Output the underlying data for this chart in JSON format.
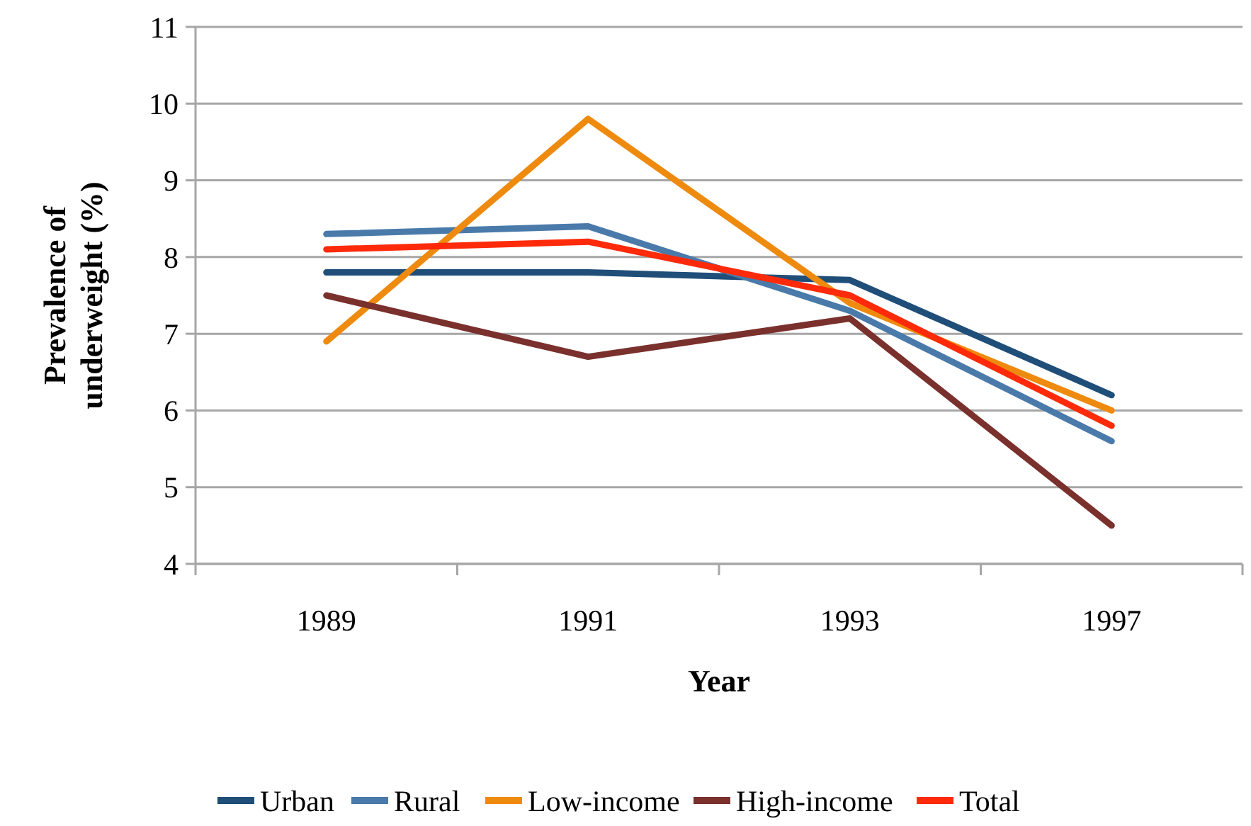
{
  "chart_data": {
    "type": "line",
    "xlabel": "Year",
    "ylabel": "Prevalence of underweight (%)",
    "categories": [
      "1989",
      "1991",
      "1993",
      "1997"
    ],
    "ylim": [
      4,
      11
    ],
    "yticks": [
      4,
      5,
      6,
      7,
      8,
      9,
      10,
      11
    ],
    "grid": "y",
    "legend": "bottom",
    "marker": "none",
    "series": [
      {
        "name": "Urban",
        "color": "#1f4e79",
        "values": [
          7.8,
          7.8,
          7.7,
          6.2
        ]
      },
      {
        "name": "Rural",
        "color": "#4a7aaa",
        "values": [
          8.3,
          8.4,
          7.3,
          5.6
        ]
      },
      {
        "name": "Low-income",
        "color": "#ee8a0e",
        "values": [
          6.9,
          9.8,
          7.4,
          6.0
        ]
      },
      {
        "name": "High-income",
        "color": "#7a302c",
        "values": [
          7.5,
          6.7,
          7.2,
          4.5
        ]
      },
      {
        "name": "Total",
        "color": "#ff2a0a",
        "values": [
          8.1,
          8.2,
          7.5,
          5.8
        ]
      }
    ]
  }
}
